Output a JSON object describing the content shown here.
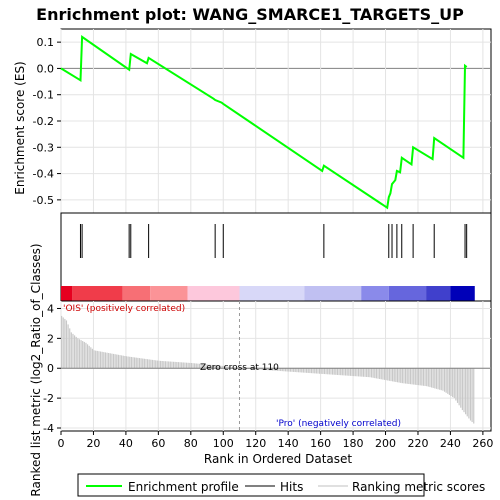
{
  "chart_data": {
    "type": "line",
    "title": "Enrichment plot: WANG_SMARCE1_TARGETS_UP",
    "top_panel": {
      "ylabel": "Enrichment score (ES)",
      "ylim": [
        -0.55,
        0.15
      ],
      "yticks": [
        0.1,
        0.0,
        -0.1,
        -0.2,
        -0.3,
        -0.4,
        -0.5
      ],
      "ytick_labels": [
        "0.1",
        "0.0",
        "-0.1",
        "-0.2",
        "-0.3",
        "-0.4",
        "-0.5"
      ],
      "series": [
        {
          "name": "Enrichment profile",
          "color": "#00ff00",
          "x": [
            0,
            12,
            13,
            42,
            43,
            53,
            54,
            94,
            95,
            99,
            100,
            161,
            162,
            201,
            202,
            203,
            204,
            206,
            207,
            209,
            210,
            216,
            217,
            229,
            230,
            248,
            249,
            250
          ],
          "y": [
            0.0,
            -0.045,
            0.12,
            -0.005,
            0.055,
            0.02,
            0.04,
            -0.115,
            -0.12,
            -0.13,
            -0.135,
            -0.39,
            -0.37,
            -0.53,
            -0.49,
            -0.475,
            -0.44,
            -0.425,
            -0.39,
            -0.395,
            -0.34,
            -0.365,
            -0.3,
            -0.345,
            -0.265,
            -0.34,
            0.01,
            0.005
          ]
        }
      ]
    },
    "hits": [
      12,
      13,
      42,
      43,
      54,
      95,
      100,
      162,
      202,
      204,
      207,
      210,
      217,
      230,
      249,
      250
    ],
    "bottom_panel": {
      "ylabel": "Ranked list metric (log2_Ratio_of_Classes)",
      "ylim": [
        -4.2,
        4.5
      ],
      "yticks": [
        4,
        2,
        0,
        -2,
        -4
      ],
      "ytick_labels": [
        "4",
        "2",
        "0",
        "-2",
        "-4"
      ],
      "metric_keypoints": [
        [
          0,
          3.5
        ],
        [
          3,
          3.2
        ],
        [
          6,
          2.4
        ],
        [
          10,
          2.0
        ],
        [
          15,
          1.7
        ],
        [
          20,
          1.2
        ],
        [
          30,
          1.0
        ],
        [
          40,
          0.8
        ],
        [
          60,
          0.5
        ],
        [
          80,
          0.35
        ],
        [
          100,
          0.15
        ],
        [
          110,
          0.0
        ],
        [
          130,
          -0.15
        ],
        [
          150,
          -0.3
        ],
        [
          170,
          -0.45
        ],
        [
          190,
          -0.6
        ],
        [
          200,
          -0.8
        ],
        [
          210,
          -1.0
        ],
        [
          225,
          -1.2
        ],
        [
          235,
          -1.5
        ],
        [
          242,
          -2.0
        ],
        [
          247,
          -2.8
        ],
        [
          252,
          -3.5
        ],
        [
          255,
          -3.8
        ]
      ],
      "zero_cross_label": "Zero cross at 110",
      "zero_cross_x": 110,
      "pos_label": "'OIS' (positively correlated)",
      "neg_label": "'Pro' (negatively correlated)"
    },
    "xlabel": "Rank in Ordered Dataset",
    "xlim": [
      0,
      265
    ],
    "xticks": [
      0,
      20,
      40,
      60,
      80,
      100,
      120,
      140,
      160,
      180,
      200,
      220,
      240,
      260
    ],
    "xtick_labels": [
      "0",
      "20",
      "40",
      "60",
      "80",
      "100",
      "120",
      "140",
      "160",
      "180",
      "200",
      "220",
      "240",
      "260"
    ],
    "n_ranks": 255,
    "heatmap_segments": [
      {
        "from": 0,
        "to": 7,
        "color": "#e6001f"
      },
      {
        "from": 7,
        "to": 38,
        "color": "#f03c4a"
      },
      {
        "from": 38,
        "to": 55,
        "color": "#f76f75"
      },
      {
        "from": 55,
        "to": 78,
        "color": "#fb9397"
      },
      {
        "from": 78,
        "to": 110,
        "color": "#fdc8dc"
      },
      {
        "from": 110,
        "to": 150,
        "color": "#d8d8f8"
      },
      {
        "from": 150,
        "to": 185,
        "color": "#c0c0f2"
      },
      {
        "from": 185,
        "to": 202,
        "color": "#8a8aea"
      },
      {
        "from": 202,
        "to": 225,
        "color": "#6666dd"
      },
      {
        "from": 225,
        "to": 240,
        "color": "#4040cc"
      },
      {
        "from": 240,
        "to": 255,
        "color": "#0000b8"
      }
    ],
    "legend": {
      "placement": "bottom",
      "items": [
        {
          "label": "Enrichment profile",
          "color": "#00ff00"
        },
        {
          "label": "Hits",
          "color": "#000000"
        },
        {
          "label": "Ranking metric scores",
          "color": "#c0c0c0"
        }
      ]
    }
  }
}
